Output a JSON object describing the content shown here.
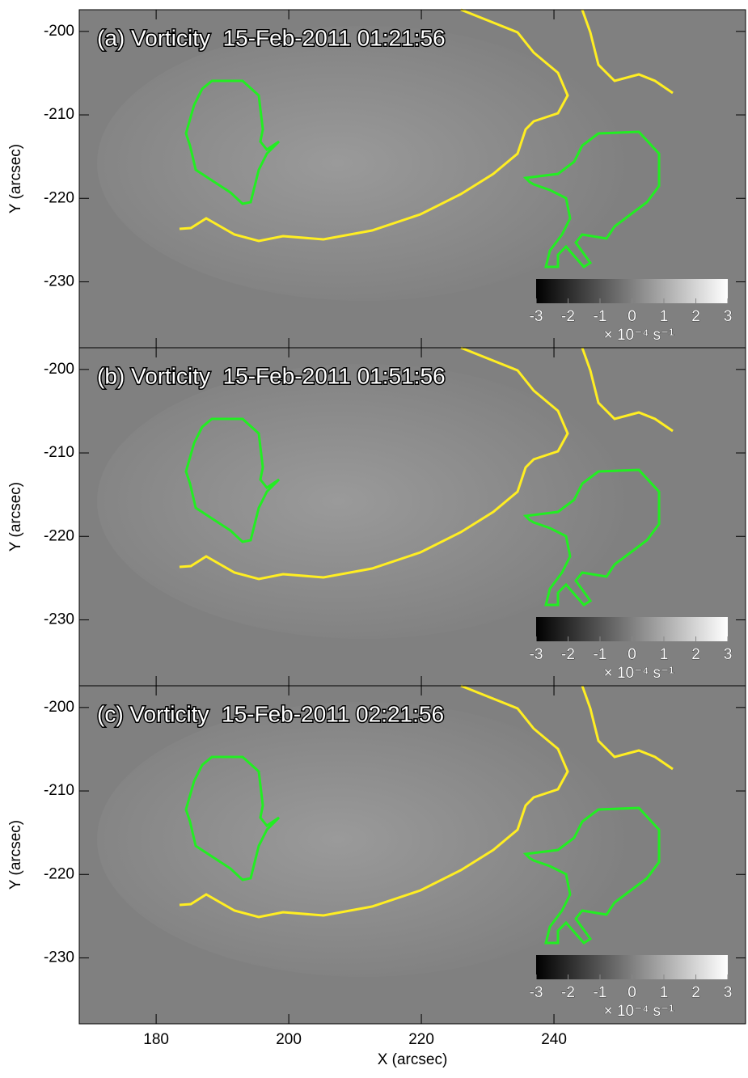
{
  "chart_data": [
    {
      "type": "heatmap",
      "title": "(a) Vorticity  15-Feb-2011 01:21:56",
      "ylabel": "Y (arcsec)",
      "xlim": [
        168.4,
        268.9
      ],
      "xticks": [
        180,
        200,
        220,
        240
      ],
      "ylim": [
        -237.9,
        -197.4
      ],
      "yticks": [
        -200,
        -210,
        -220,
        -230
      ],
      "colorbar": {
        "range": [
          -3,
          3
        ],
        "ticks": [
          -3,
          -2,
          -1,
          0,
          1,
          2,
          3
        ],
        "label": "× 10⁻⁴ s⁻¹"
      }
    },
    {
      "type": "heatmap",
      "title": "(b) Vorticity  15-Feb-2011 01:51:56",
      "ylabel": "Y (arcsec)",
      "xlim": [
        168.4,
        268.9
      ],
      "xticks": [
        180,
        200,
        220,
        240
      ],
      "ylim": [
        -237.9,
        -197.4
      ],
      "yticks": [
        -200,
        -210,
        -220,
        -230
      ],
      "colorbar": {
        "range": [
          -3,
          3
        ],
        "ticks": [
          -3,
          -2,
          -1,
          0,
          1,
          2,
          3
        ],
        "label": "× 10⁻⁴ s⁻¹"
      }
    },
    {
      "type": "heatmap",
      "title": "(c) Vorticity  15-Feb-2011 02:21:56",
      "ylabel": "Y (arcsec)",
      "xlabel": "X (arcsec)",
      "xlim": [
        168.4,
        268.9
      ],
      "xticks": [
        180,
        200,
        220,
        240
      ],
      "ylim": [
        -237.9,
        -197.4
      ],
      "yticks": [
        -200,
        -210,
        -220,
        -230
      ],
      "colorbar": {
        "range": [
          -3,
          3
        ],
        "ticks": [
          -3,
          -2,
          -1,
          0,
          1,
          2,
          3
        ],
        "label": "× 10⁻⁴ s⁻¹"
      }
    }
  ]
}
